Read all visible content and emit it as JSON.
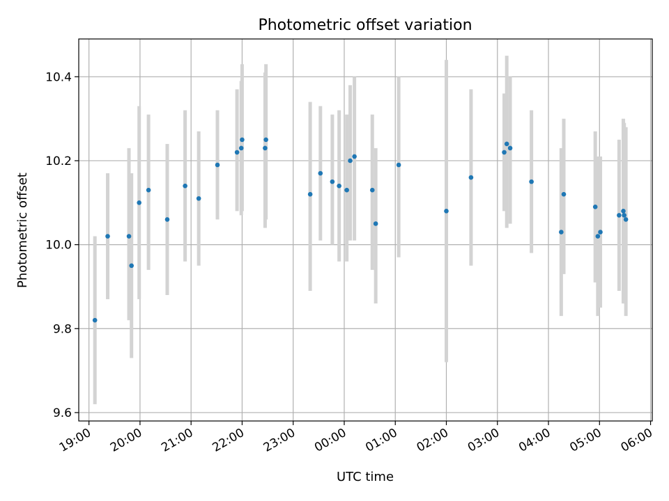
{
  "chart_data": {
    "type": "scatter",
    "title": "Photometric offset variation",
    "xlabel": "UTC time",
    "ylabel": "Photometric offset",
    "grid": true,
    "legend": "none",
    "xlim": [
      "18:48",
      "06:02"
    ],
    "ylim": [
      9.58,
      10.49
    ],
    "x_ticks": [
      "19:00",
      "20:00",
      "21:00",
      "22:00",
      "23:00",
      "00:00",
      "01:00",
      "02:00",
      "03:00",
      "04:00",
      "05:00",
      "06:00"
    ],
    "y_ticks": [
      "9.6",
      "9.8",
      "10.0",
      "10.2",
      "10.4"
    ],
    "colors": {
      "point": "#1f77b4",
      "errorbar": "#d3d3d3",
      "grid": "#b0b0b0"
    },
    "series": [
      {
        "x": [
          "19:07",
          "19:22",
          "19:47",
          "19:50",
          "19:59",
          "20:10",
          "20:32",
          "20:53",
          "21:09",
          "21:31",
          "21:54",
          "21:59",
          "22:00",
          "22:27",
          "22:28",
          "23:20",
          "23:32",
          "23:46",
          "23:54",
          "00:03",
          "00:07",
          "00:12",
          "00:33",
          "00:37",
          "01:04",
          "02:00",
          "02:29",
          "03:08",
          "03:11",
          "03:15",
          "03:40",
          "04:15",
          "04:18",
          "04:55",
          "04:58",
          "05:01",
          "05:23",
          "05:28",
          "05:29",
          "05:31"
        ],
        "y": [
          9.82,
          10.02,
          10.02,
          9.95,
          10.1,
          10.13,
          10.06,
          10.14,
          10.11,
          10.19,
          10.22,
          10.23,
          10.25,
          10.23,
          10.25,
          10.12,
          10.17,
          10.15,
          10.14,
          10.13,
          10.2,
          10.21,
          10.13,
          10.05,
          10.19,
          10.08,
          10.16,
          10.22,
          10.24,
          10.23,
          10.15,
          10.03,
          10.12,
          10.09,
          10.02,
          10.03,
          10.07,
          10.08,
          10.07,
          10.06
        ],
        "err_low": [
          9.62,
          9.87,
          9.82,
          9.73,
          9.87,
          9.94,
          9.88,
          9.96,
          9.95,
          10.06,
          10.08,
          10.07,
          10.08,
          10.04,
          10.06,
          9.89,
          10.01,
          10.0,
          9.96,
          9.96,
          10.01,
          10.01,
          9.94,
          9.86,
          9.97,
          9.72,
          9.95,
          10.08,
          10.04,
          10.05,
          9.98,
          9.83,
          9.93,
          9.91,
          9.83,
          9.85,
          9.89,
          9.86,
          9.86,
          9.83
        ],
        "err_high": [
          10.02,
          10.17,
          10.23,
          10.17,
          10.33,
          10.31,
          10.24,
          10.32,
          10.27,
          10.32,
          10.37,
          10.39,
          10.43,
          10.41,
          10.43,
          10.34,
          10.33,
          10.31,
          10.32,
          10.31,
          10.38,
          10.4,
          10.31,
          10.23,
          10.4,
          10.44,
          10.37,
          10.36,
          10.45,
          10.4,
          10.32,
          10.23,
          10.3,
          10.27,
          10.21,
          10.21,
          10.25,
          10.3,
          10.29,
          10.28
        ]
      }
    ]
  }
}
